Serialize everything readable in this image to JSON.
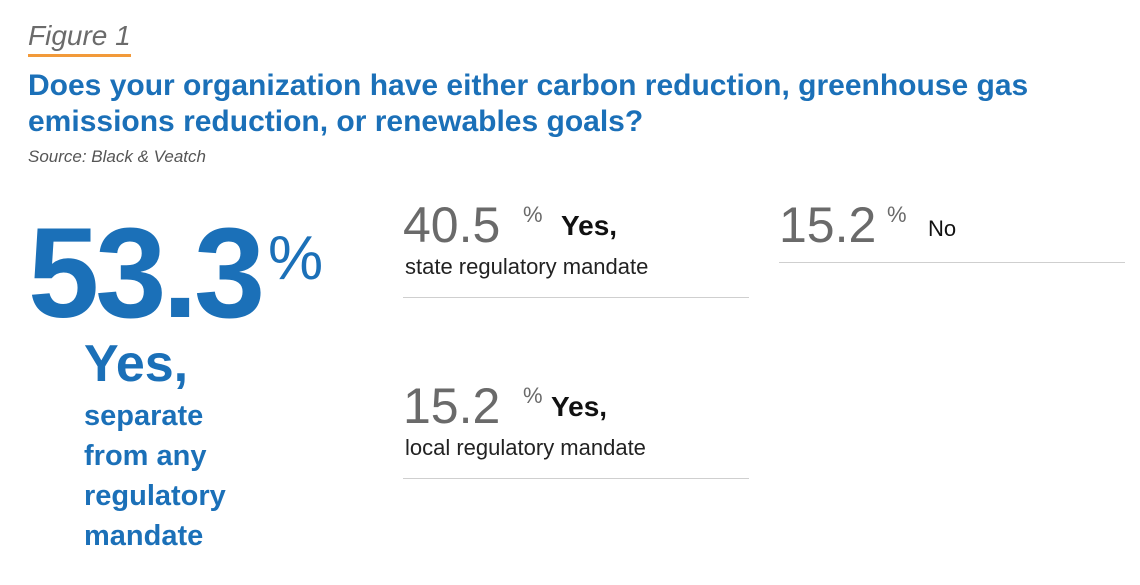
{
  "figure_label": "Figure 1",
  "chart_data": {
    "type": "table",
    "title": "Does your organization have either carbon reduction, greenhouse gas emissions reduction, or renewables goals?",
    "source": "Source: Black & Veatch",
    "unit": "%",
    "items": [
      {
        "value": 53.3,
        "value_text": "53.3",
        "head": "Yes,",
        "desc": "separate\nfrom any\nregulatory\nmandate",
        "color": "#1b70b8"
      },
      {
        "value": 40.5,
        "value_text": "40.5",
        "head": "Yes,",
        "desc": "state regulatory mandate",
        "color": "#6a6a6a"
      },
      {
        "value": 15.2,
        "value_text": "15.2",
        "head": "No",
        "desc": "",
        "color": "#6a6a6a"
      },
      {
        "value": 15.2,
        "value_text": "15.2",
        "head": "Yes,",
        "desc": "local regulatory mandate",
        "color": "#6a6a6a"
      }
    ]
  },
  "colors": {
    "accent": "#1b70b8",
    "underline": "#f29a3a",
    "muted": "#6a6a6a",
    "divider": "#cfcfcf"
  }
}
